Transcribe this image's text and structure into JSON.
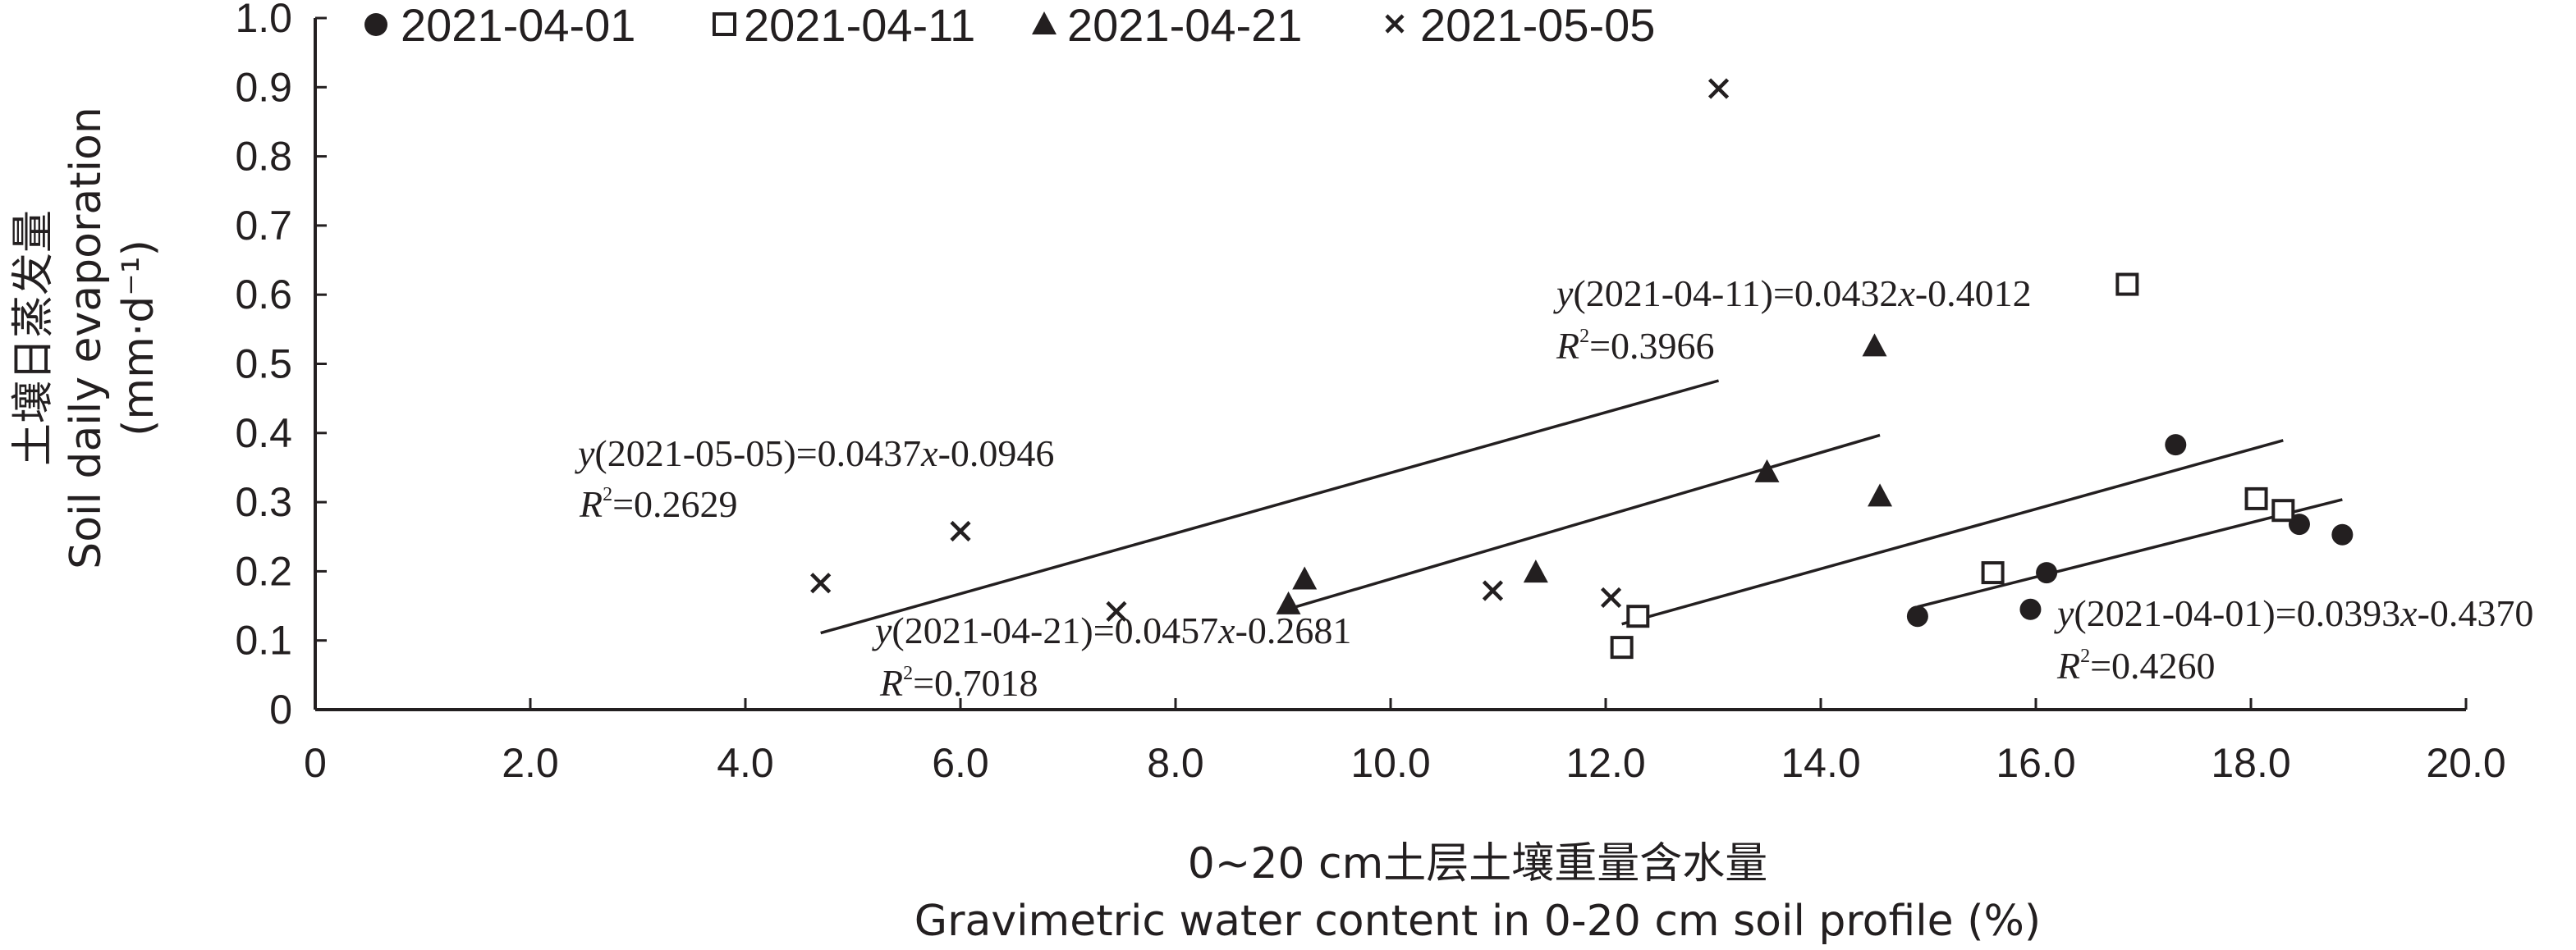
{
  "chart_data": {
    "type": "scatter",
    "xlabel_cn": "0~20 cm土层土壤重量含水量",
    "xlabel_en": "Gravimetric water content in 0-20 cm soil profile (%)",
    "ylabel_cn": "土壤日蒸发量",
    "ylabel_en_1": "Soil daily evaporation",
    "ylabel_en_2": "(mm·d⁻¹)",
    "xlim": [
      0,
      20
    ],
    "ylim": [
      0,
      1.0
    ],
    "x_ticks": [
      "0",
      "2.0",
      "4.0",
      "6.0",
      "8.0",
      "10.0",
      "12.0",
      "14.0",
      "16.0",
      "18.0",
      "20.0"
    ],
    "y_ticks": [
      "0",
      "0.1",
      "0.2",
      "0.3",
      "0.4",
      "0.5",
      "0.6",
      "0.7",
      "0.8",
      "0.9",
      "1.0"
    ],
    "grid": false,
    "legend_position": "top",
    "series": [
      {
        "name": "2021-04-01",
        "marker": "filled-circle",
        "points": [
          [
            14.9,
            0.135
          ],
          [
            15.95,
            0.145
          ],
          [
            16.1,
            0.198
          ],
          [
            17.3,
            0.383
          ],
          [
            18.45,
            0.268
          ],
          [
            18.85,
            0.253
          ]
        ],
        "fit": {
          "x": [
            14.9,
            18.85
          ],
          "slope": 0.0393,
          "intercept": -0.437
        },
        "eq_text": "(2021-04-01)=0.0393",
        "eq_tail": "-0.4370",
        "r2_text": "=0.4260"
      },
      {
        "name": "2021-04-11",
        "marker": "open-square",
        "points": [
          [
            12.15,
            0.09
          ],
          [
            12.3,
            0.135
          ],
          [
            15.6,
            0.198
          ],
          [
            16.85,
            0.615
          ],
          [
            18.05,
            0.305
          ],
          [
            18.3,
            0.288
          ]
        ],
        "fit": {
          "x": [
            12.15,
            18.3
          ],
          "slope": 0.0432,
          "intercept": -0.4012
        },
        "eq_text": "(2021-04-11)=0.0432",
        "eq_tail": "-0.4012",
        "r2_text": "=0.3966"
      },
      {
        "name": "2021-04-21",
        "marker": "filled-triangle",
        "points": [
          [
            9.05,
            0.152
          ],
          [
            9.2,
            0.188
          ],
          [
            11.35,
            0.198
          ],
          [
            13.5,
            0.343
          ],
          [
            14.5,
            0.525
          ],
          [
            14.55,
            0.308
          ]
        ],
        "fit": {
          "x": [
            9.05,
            14.55
          ],
          "slope": 0.0457,
          "intercept": -0.2681
        },
        "eq_text": "(2021-04-21)=0.0457",
        "eq_tail": "-0.2681",
        "r2_text": "=0.7018"
      },
      {
        "name": "2021-05-05",
        "marker": "cross",
        "points": [
          [
            4.7,
            0.183
          ],
          [
            6.0,
            0.258
          ],
          [
            7.45,
            0.142
          ],
          [
            10.95,
            0.172
          ],
          [
            12.05,
            0.162
          ],
          [
            13.05,
            0.898
          ]
        ],
        "fit": {
          "x": [
            4.7,
            13.05
          ],
          "slope": 0.0437,
          "intercept": -0.0946
        },
        "eq_text": "(2021-05-05)=0.0437",
        "eq_tail": "-0.0946",
        "r2_text": "=0.2629"
      }
    ]
  }
}
